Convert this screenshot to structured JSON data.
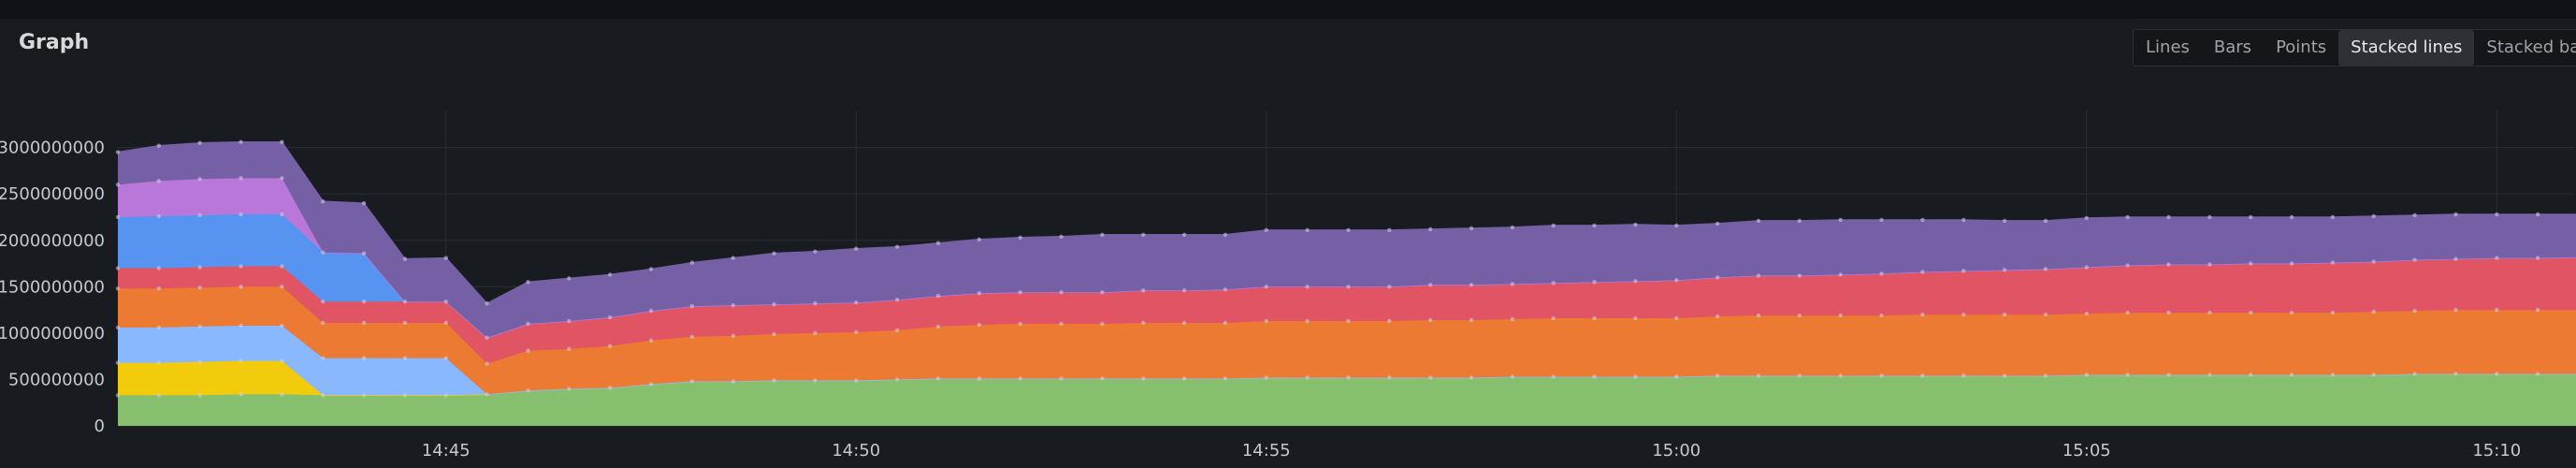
{
  "panel": {
    "title": "Graph",
    "view_buttons": [
      "Lines",
      "Bars",
      "Points",
      "Stacked lines",
      "Stacked bars"
    ],
    "active_view": "Stacked lines"
  },
  "chart_data": {
    "type": "area",
    "stacked": true,
    "grid": true,
    "x_labels": [
      "14:45",
      "14:50",
      "14:55",
      "15:00",
      "15:05",
      "15:10"
    ],
    "y_ticks": [
      "0",
      "500000000",
      "1000000000",
      "1500000000",
      "2000000000",
      "2500000000",
      "3000000000"
    ],
    "ylim": [
      0,
      3400000000
    ],
    "x": [
      "14:41",
      "14:41:30",
      "14:42",
      "14:42:30",
      "14:43",
      "14:43:30",
      "14:44",
      "14:44:30",
      "14:45",
      "14:45:30",
      "14:46",
      "14:46:30",
      "14:47",
      "14:47:30",
      "14:48",
      "14:48:30",
      "14:49",
      "14:49:30",
      "14:50",
      "14:50:30",
      "14:51",
      "14:51:30",
      "14:52",
      "14:52:30",
      "14:53",
      "14:53:30",
      "14:54",
      "14:54:30",
      "14:55",
      "14:55:30",
      "14:56",
      "14:56:30",
      "14:57",
      "14:57:30",
      "14:58",
      "14:58:30",
      "14:59",
      "14:59:30",
      "15:00",
      "15:00:30",
      "15:01",
      "15:01:30",
      "15:02",
      "15:02:30",
      "15:03",
      "15:03:30",
      "15:04",
      "15:04:30",
      "15:05",
      "15:05:30",
      "15:06",
      "15:06:30",
      "15:07",
      "15:07:30",
      "15:08",
      "15:08:30",
      "15:09",
      "15:09:30",
      "15:10",
      "15:10:30",
      "15:11"
    ],
    "series": [
      {
        "color": "#86bf6e",
        "values": [
          330000000,
          330000000,
          330000000,
          340000000,
          340000000,
          330000000,
          330000000,
          330000000,
          330000000,
          340000000,
          380000000,
          400000000,
          410000000,
          450000000,
          480000000,
          480000000,
          490000000,
          490000000,
          490000000,
          500000000,
          510000000,
          510000000,
          510000000,
          510000000,
          510000000,
          510000000,
          510000000,
          510000000,
          520000000,
          520000000,
          520000000,
          520000000,
          520000000,
          520000000,
          530000000,
          530000000,
          530000000,
          530000000,
          530000000,
          540000000,
          540000000,
          540000000,
          540000000,
          540000000,
          540000000,
          540000000,
          540000000,
          540000000,
          550000000,
          550000000,
          550000000,
          550000000,
          550000000,
          550000000,
          550000000,
          550000000,
          560000000,
          560000000,
          560000000,
          560000000,
          560000000
        ]
      },
      {
        "color": "#f2cc0c",
        "values": [
          350000000,
          350000000,
          360000000,
          360000000,
          360000000,
          0,
          0,
          0,
          0,
          0,
          0,
          0,
          0,
          0,
          0,
          0,
          0,
          0,
          0,
          0,
          0,
          0,
          0,
          0,
          0,
          0,
          0,
          0,
          0,
          0,
          0,
          0,
          0,
          0,
          0,
          0,
          0,
          0,
          0,
          0,
          0,
          0,
          0,
          0,
          0,
          0,
          0,
          0,
          0,
          0,
          0,
          0,
          0,
          0,
          0,
          0,
          0,
          0,
          0,
          0,
          0
        ]
      },
      {
        "color": "#8ab8ff",
        "values": [
          380000000,
          380000000,
          380000000,
          380000000,
          380000000,
          400000000,
          400000000,
          400000000,
          400000000,
          0,
          0,
          0,
          0,
          0,
          0,
          0,
          0,
          0,
          0,
          0,
          0,
          0,
          0,
          0,
          0,
          0,
          0,
          0,
          0,
          0,
          0,
          0,
          0,
          0,
          0,
          0,
          0,
          0,
          0,
          0,
          0,
          0,
          0,
          0,
          0,
          0,
          0,
          0,
          0,
          0,
          0,
          0,
          0,
          0,
          0,
          0,
          0,
          0,
          0,
          0,
          0
        ]
      },
      {
        "color": "#ec7a33",
        "values": [
          420000000,
          420000000,
          420000000,
          420000000,
          420000000,
          380000000,
          380000000,
          380000000,
          380000000,
          330000000,
          430000000,
          430000000,
          450000000,
          470000000,
          480000000,
          490000000,
          500000000,
          510000000,
          520000000,
          530000000,
          560000000,
          580000000,
          590000000,
          590000000,
          590000000,
          600000000,
          600000000,
          600000000,
          610000000,
          610000000,
          610000000,
          610000000,
          620000000,
          620000000,
          620000000,
          630000000,
          630000000,
          630000000,
          630000000,
          640000000,
          650000000,
          650000000,
          650000000,
          650000000,
          660000000,
          660000000,
          660000000,
          660000000,
          660000000,
          670000000,
          670000000,
          670000000,
          670000000,
          670000000,
          670000000,
          680000000,
          680000000,
          690000000,
          690000000,
          690000000,
          690000000
        ]
      },
      {
        "color": "#e05463",
        "values": [
          220000000,
          220000000,
          220000000,
          220000000,
          220000000,
          230000000,
          230000000,
          230000000,
          230000000,
          280000000,
          290000000,
          300000000,
          310000000,
          320000000,
          330000000,
          330000000,
          320000000,
          320000000,
          320000000,
          330000000,
          330000000,
          340000000,
          340000000,
          340000000,
          340000000,
          350000000,
          350000000,
          360000000,
          370000000,
          370000000,
          370000000,
          370000000,
          380000000,
          380000000,
          380000000,
          380000000,
          390000000,
          400000000,
          410000000,
          420000000,
          430000000,
          430000000,
          440000000,
          450000000,
          460000000,
          470000000,
          480000000,
          490000000,
          500000000,
          510000000,
          520000000,
          520000000,
          530000000,
          530000000,
          540000000,
          540000000,
          550000000,
          550000000,
          560000000,
          560000000,
          570000000
        ]
      },
      {
        "color": "#5794f2",
        "values": [
          550000000,
          560000000,
          560000000,
          560000000,
          560000000,
          530000000,
          520000000,
          0,
          0,
          0,
          0,
          0,
          0,
          0,
          0,
          0,
          0,
          0,
          0,
          0,
          0,
          0,
          0,
          0,
          0,
          0,
          0,
          0,
          0,
          0,
          0,
          0,
          0,
          0,
          0,
          0,
          0,
          0,
          0,
          0,
          0,
          0,
          0,
          0,
          0,
          0,
          0,
          0,
          0,
          0,
          0,
          0,
          0,
          0,
          0,
          0,
          0,
          0,
          0,
          0,
          0
        ]
      },
      {
        "color": "#b877d9",
        "values": [
          350000000,
          380000000,
          390000000,
          390000000,
          390000000,
          0,
          0,
          0,
          0,
          0,
          0,
          0,
          0,
          0,
          0,
          0,
          0,
          0,
          0,
          0,
          0,
          0,
          0,
          0,
          0,
          0,
          0,
          0,
          0,
          0,
          0,
          0,
          0,
          0,
          0,
          0,
          0,
          0,
          0,
          0,
          0,
          0,
          0,
          0,
          0,
          0,
          0,
          0,
          0,
          0,
          0,
          0,
          0,
          0,
          0,
          0,
          0,
          0,
          0,
          0,
          0
        ]
      },
      {
        "color": "#7560a5",
        "values": [
          350000000,
          380000000,
          390000000,
          390000000,
          390000000,
          550000000,
          540000000,
          460000000,
          470000000,
          370000000,
          450000000,
          460000000,
          460000000,
          450000000,
          470000000,
          510000000,
          550000000,
          560000000,
          580000000,
          570000000,
          570000000,
          580000000,
          590000000,
          600000000,
          620000000,
          600000000,
          600000000,
          590000000,
          610000000,
          610000000,
          610000000,
          610000000,
          600000000,
          610000000,
          610000000,
          620000000,
          610000000,
          610000000,
          590000000,
          580000000,
          590000000,
          590000000,
          590000000,
          580000000,
          560000000,
          550000000,
          530000000,
          520000000,
          530000000,
          520000000,
          510000000,
          510000000,
          500000000,
          500000000,
          490000000,
          490000000,
          480000000,
          480000000,
          470000000,
          470000000,
          460000000
        ]
      }
    ]
  }
}
